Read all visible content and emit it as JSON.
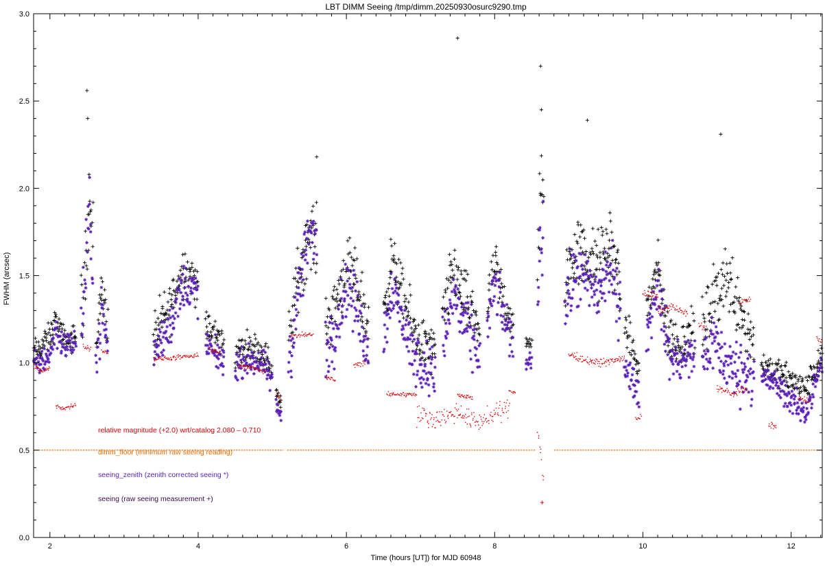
{
  "chart_data": {
    "type": "scatter",
    "title": "LBT DIMM Seeing  /tmp/dimm.20250930osurc9290.tmp",
    "xlabel": "Time (hours [UT]) for MJD      60948",
    "ylabel": "FWHM (arcsec)",
    "xlim": [
      1.78,
      12.42
    ],
    "ylim": [
      0.0,
      3.0
    ],
    "x_ticks": [
      "2",
      "4",
      "6",
      "8",
      "10",
      "12"
    ],
    "y_ticks": [
      "0.0",
      "0.5",
      "1.0",
      "1.5",
      "2.0",
      "2.5",
      "3.0"
    ],
    "grid": false,
    "legend_position": "lower-left",
    "legend": [
      {
        "key": "relmag",
        "label": "relative magnitude (+2.0) wrt/catalog  2.080 –  0.710",
        "color": "#dd0000"
      },
      {
        "key": "floor",
        "label": "dimm_floor  (minimum raw seeing reading)",
        "color": "#ee6a00"
      },
      {
        "key": "zenith",
        "label": "seeing_zenith (zenith corrected seeing *)",
        "color": "#5a1fb5"
      },
      {
        "key": "raw",
        "label": "seeing  (raw seeing measurement +)",
        "color": "#3a0a4a"
      }
    ],
    "series": [
      {
        "key": "raw",
        "marker": "plus",
        "color": "#000000",
        "segments": [
          {
            "x": [
              1.78,
              2.0,
              2.08,
              2.12,
              2.2,
              2.35
            ],
            "y": [
              1.05,
              1.15,
              1.25,
              1.2,
              1.12,
              1.15
            ],
            "spread": 0.12
          },
          {
            "x": [
              2.42,
              2.48,
              2.53,
              2.58
            ],
            "y": [
              1.25,
              1.6,
              1.95,
              1.7
            ],
            "spread": 0.35
          },
          {
            "x": [
              2.62,
              2.7,
              2.78
            ],
            "y": [
              1.1,
              1.45,
              1.2
            ],
            "spread": 0.2
          },
          {
            "x": [
              3.4,
              3.6,
              3.8,
              4.0
            ],
            "y": [
              1.15,
              1.3,
              1.55,
              1.45
            ],
            "spread": 0.22
          },
          {
            "x": [
              4.1,
              4.25,
              4.35
            ],
            "y": [
              1.2,
              1.15,
              1.1
            ],
            "spread": 0.15
          },
          {
            "x": [
              4.5,
              4.7,
              4.9,
              5.0
            ],
            "y": [
              1.05,
              1.1,
              1.05,
              0.95
            ],
            "spread": 0.13
          },
          {
            "x": [
              5.05,
              5.12
            ],
            "y": [
              0.85,
              0.75
            ],
            "spread": 0.08
          },
          {
            "x": [
              5.22,
              5.35,
              5.5,
              5.6
            ],
            "y": [
              1.1,
              1.5,
              1.75,
              1.7
            ],
            "spread": 0.28
          },
          {
            "x": [
              5.72,
              5.85,
              6.0,
              6.15,
              6.3
            ],
            "y": [
              1.2,
              1.35,
              1.55,
              1.45,
              1.2
            ],
            "spread": 0.25
          },
          {
            "x": [
              6.5,
              6.62,
              6.75,
              6.9,
              7.05,
              7.2
            ],
            "y": [
              1.3,
              1.6,
              1.4,
              1.2,
              1.1,
              1.05
            ],
            "spread": 0.22
          },
          {
            "x": [
              7.3,
              7.45,
              7.6,
              7.8
            ],
            "y": [
              1.25,
              1.55,
              1.35,
              1.2
            ],
            "spread": 0.25
          },
          {
            "x": [
              7.9,
              8.0,
              8.1,
              8.25
            ],
            "y": [
              1.3,
              1.55,
              1.4,
              1.2
            ],
            "spread": 0.22
          },
          {
            "x": [
              8.42,
              8.5
            ],
            "y": [
              1.1,
              1.12
            ],
            "spread": 0.06
          },
          {
            "x": [
              8.58,
              8.62,
              8.66
            ],
            "y": [
              1.6,
              2.0,
              1.8
            ],
            "spread": 0.45
          },
          {
            "x": [
              8.95,
              9.1,
              9.25,
              9.4,
              9.55,
              9.7
            ],
            "y": [
              1.5,
              1.65,
              1.6,
              1.55,
              1.7,
              1.45
            ],
            "spread": 0.3
          },
          {
            "x": [
              9.75,
              9.85,
              9.95
            ],
            "y": [
              1.2,
              1.1,
              0.95
            ],
            "spread": 0.15
          },
          {
            "x": [
              10.05,
              10.2,
              10.35,
              10.5,
              10.7
            ],
            "y": [
              1.3,
              1.55,
              1.15,
              1.1,
              1.2
            ],
            "spread": 0.2
          },
          {
            "x": [
              10.8,
              10.95,
              11.1,
              11.3,
              11.5
            ],
            "y": [
              1.15,
              1.35,
              1.5,
              1.35,
              1.1
            ],
            "spread": 0.3
          },
          {
            "x": [
              11.6,
              11.8,
              12.0,
              12.2,
              12.42
            ],
            "y": [
              1.0,
              0.95,
              0.9,
              0.85,
              1.05
            ],
            "spread": 0.12
          }
        ]
      },
      {
        "key": "zenith",
        "marker": "star",
        "color": "#5a1fb5",
        "segments": [
          {
            "x": [
              1.78,
              2.0,
              2.08,
              2.12,
              2.2,
              2.35
            ],
            "y": [
              0.98,
              1.05,
              1.2,
              1.15,
              1.1,
              1.12
            ],
            "spread": 0.12
          },
          {
            "x": [
              2.42,
              2.48,
              2.53,
              2.58
            ],
            "y": [
              1.2,
              1.5,
              1.85,
              1.6
            ],
            "spread": 0.32
          },
          {
            "x": [
              2.62,
              2.7,
              2.78
            ],
            "y": [
              1.0,
              1.3,
              1.1
            ],
            "spread": 0.2
          },
          {
            "x": [
              3.4,
              3.6,
              3.8,
              4.0
            ],
            "y": [
              1.05,
              1.2,
              1.45,
              1.4
            ],
            "spread": 0.2
          },
          {
            "x": [
              4.1,
              4.25,
              4.35
            ],
            "y": [
              1.1,
              1.05,
              1.0
            ],
            "spread": 0.13
          },
          {
            "x": [
              4.5,
              4.7,
              4.9,
              5.0
            ],
            "y": [
              0.98,
              1.02,
              0.98,
              0.88
            ],
            "spread": 0.12
          },
          {
            "x": [
              5.05,
              5.12
            ],
            "y": [
              0.75,
              0.7
            ],
            "spread": 0.07
          },
          {
            "x": [
              5.22,
              5.35,
              5.5,
              5.6
            ],
            "y": [
              1.0,
              1.4,
              1.75,
              1.7
            ],
            "spread": 0.28
          },
          {
            "x": [
              5.72,
              5.85,
              6.0,
              6.15,
              6.3
            ],
            "y": [
              1.05,
              1.2,
              1.45,
              1.3,
              1.05
            ],
            "spread": 0.25
          },
          {
            "x": [
              6.5,
              6.62,
              6.75,
              6.9,
              7.05,
              7.2
            ],
            "y": [
              1.15,
              1.45,
              1.25,
              1.05,
              0.98,
              0.95
            ],
            "spread": 0.22
          },
          {
            "x": [
              7.3,
              7.45,
              7.6,
              7.8
            ],
            "y": [
              1.1,
              1.4,
              1.2,
              1.05
            ],
            "spread": 0.25
          },
          {
            "x": [
              7.9,
              8.0,
              8.1,
              8.25
            ],
            "y": [
              1.2,
              1.45,
              1.3,
              1.1
            ],
            "spread": 0.2
          },
          {
            "x": [
              8.42,
              8.5
            ],
            "y": [
              1.0,
              1.02
            ],
            "spread": 0.06
          },
          {
            "x": [
              8.58,
              8.62,
              8.66
            ],
            "y": [
              1.4,
              1.8,
              1.6
            ],
            "spread": 0.4
          },
          {
            "x": [
              8.95,
              9.1,
              9.25,
              9.4,
              9.55,
              9.7
            ],
            "y": [
              1.35,
              1.5,
              1.45,
              1.4,
              1.55,
              1.3
            ],
            "spread": 0.28
          },
          {
            "x": [
              9.75,
              9.85,
              9.95
            ],
            "y": [
              1.0,
              0.9,
              0.82
            ],
            "spread": 0.13
          },
          {
            "x": [
              10.05,
              10.2,
              10.35,
              10.5,
              10.7
            ],
            "y": [
              1.15,
              1.45,
              1.05,
              1.0,
              1.05
            ],
            "spread": 0.2
          },
          {
            "x": [
              10.8,
              10.95,
              11.1,
              11.3,
              11.5
            ],
            "y": [
              1.0,
              1.15,
              1.0,
              0.95,
              0.95
            ],
            "spread": 0.25
          },
          {
            "x": [
              11.6,
              11.8,
              12.0,
              12.2,
              12.42
            ],
            "y": [
              0.92,
              0.88,
              0.78,
              0.72,
              1.0
            ],
            "spread": 0.12
          }
        ]
      },
      {
        "key": "relmag",
        "marker": "dot",
        "color": "#dd0000",
        "segments": [
          {
            "x": [
              1.78,
              1.9,
              2.0
            ],
            "y": [
              0.98,
              0.95,
              0.97
            ],
            "spread": 0.02
          },
          {
            "x": [
              2.08,
              2.2,
              2.35
            ],
            "y": [
              0.75,
              0.74,
              0.76
            ],
            "spread": 0.02
          },
          {
            "x": [
              2.45,
              2.55
            ],
            "y": [
              1.1,
              1.08
            ],
            "spread": 0.02
          },
          {
            "x": [
              2.7,
              2.78
            ],
            "y": [
              1.07,
              1.06
            ],
            "spread": 0.02
          },
          {
            "x": [
              3.4,
              3.7,
              4.0
            ],
            "y": [
              1.02,
              1.03,
              1.04
            ],
            "spread": 0.02
          },
          {
            "x": [
              4.15,
              4.3
            ],
            "y": [
              1.08,
              1.06
            ],
            "spread": 0.02
          },
          {
            "x": [
              4.55,
              4.75,
              4.9
            ],
            "y": [
              0.98,
              0.97,
              0.95
            ],
            "spread": 0.02
          },
          {
            "x": [
              5.05,
              5.12
            ],
            "y": [
              0.83,
              0.8
            ],
            "spread": 0.04
          },
          {
            "x": [
              5.25,
              5.4,
              5.55
            ],
            "y": [
              1.15,
              1.16,
              1.16
            ],
            "spread": 0.02
          },
          {
            "x": [
              5.72,
              5.85
            ],
            "y": [
              0.92,
              0.9
            ],
            "spread": 0.02
          },
          {
            "x": [
              6.1,
              6.25
            ],
            "y": [
              0.98,
              1.0
            ],
            "spread": 0.03
          },
          {
            "x": [
              6.55,
              6.8,
              6.95
            ],
            "y": [
              0.82,
              0.82,
              0.82
            ],
            "spread": 0.02
          },
          {
            "x": [
              6.95,
              7.25,
              7.5,
              7.75,
              8.0,
              8.2
            ],
            "y": [
              0.7,
              0.68,
              0.72,
              0.66,
              0.7,
              0.75
            ],
            "spread": 0.08
          },
          {
            "x": [
              7.5,
              7.7
            ],
            "y": [
              0.82,
              0.8
            ],
            "spread": 0.02
          },
          {
            "x": [
              8.2,
              8.28
            ],
            "y": [
              0.84,
              0.83
            ],
            "spread": 0.02
          },
          {
            "x": [
              8.58,
              8.62,
              8.66
            ],
            "y": [
              0.6,
              0.45,
              0.35
            ],
            "spread": 0.15
          },
          {
            "x": [
              9.0,
              9.2,
              9.4,
              9.6,
              9.75
            ],
            "y": [
              1.05,
              1.02,
              1.0,
              1.01,
              1.03
            ],
            "spread": 0.03
          },
          {
            "x": [
              9.9,
              9.98
            ],
            "y": [
              0.67,
              0.7
            ],
            "spread": 0.03
          },
          {
            "x": [
              10.0,
              10.2
            ],
            "y": [
              1.4,
              1.38
            ],
            "spread": 0.03
          },
          {
            "x": [
              10.2,
              10.4,
              10.6
            ],
            "y": [
              1.3,
              1.32,
              1.28
            ],
            "spread": 0.03
          },
          {
            "x": [
              10.75,
              10.85
            ],
            "y": [
              1.22,
              1.2
            ],
            "spread": 0.03
          },
          {
            "x": [
              11.0,
              11.2,
              11.4
            ],
            "y": [
              0.86,
              0.82,
              0.85
            ],
            "spread": 0.03
          },
          {
            "x": [
              11.3,
              11.45
            ],
            "y": [
              1.35,
              1.36
            ],
            "spread": 0.02
          },
          {
            "x": [
              11.7,
              11.8
            ],
            "y": [
              0.65,
              0.63
            ],
            "spread": 0.03
          },
          {
            "x": [
              12.1,
              12.25
            ],
            "y": [
              0.8,
              0.78
            ],
            "spread": 0.03
          },
          {
            "x": [
              12.35,
              12.42
            ],
            "y": [
              1.15,
              1.12
            ],
            "spread": 0.03
          }
        ]
      },
      {
        "key": "floor",
        "marker": "dash",
        "color": "#ee6a00",
        "y": 0.5,
        "x_ranges": [
          [
            1.78,
            5.15
          ],
          [
            5.2,
            8.55
          ],
          [
            8.8,
            12.42
          ]
        ]
      }
    ],
    "spikes": [
      {
        "x": 2.5,
        "y": 2.56
      },
      {
        "x": 2.51,
        "y": 2.4
      },
      {
        "x": 7.5,
        "y": 2.86
      },
      {
        "x": 8.62,
        "y": 2.7
      },
      {
        "x": 8.63,
        "y": 2.45
      },
      {
        "x": 9.25,
        "y": 2.39
      },
      {
        "x": 11.05,
        "y": 2.31
      },
      {
        "x": 5.6,
        "y": 2.18
      },
      {
        "x": 8.64,
        "y": 0.2
      }
    ]
  }
}
